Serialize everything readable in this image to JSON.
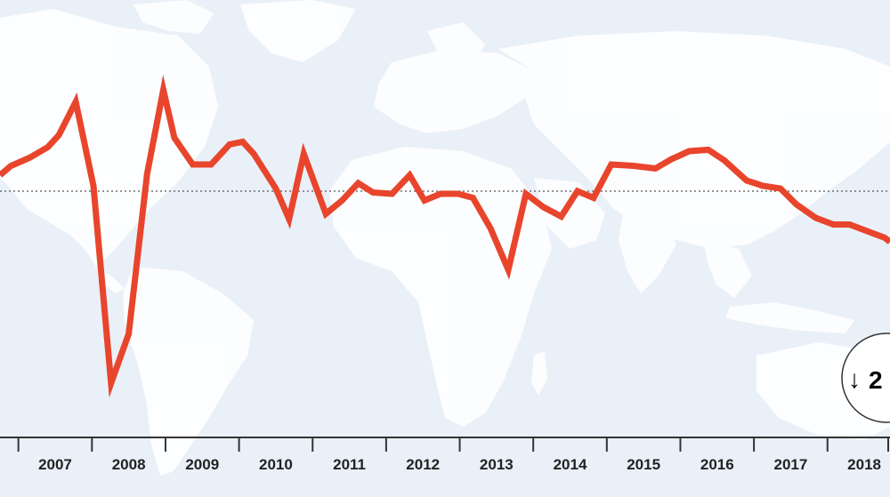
{
  "chart_data": {
    "type": "line",
    "title": "",
    "xlabel": "",
    "ylabel": "",
    "x_tick_labels": [
      "2007",
      "2008",
      "2009",
      "2010",
      "2011",
      "2012",
      "2013",
      "2014",
      "2015",
      "2016",
      "2017",
      "2018"
    ],
    "x_range": [
      2006.75,
      2018.85
    ],
    "y_range": [
      -100,
      100
    ],
    "reference_line": 0,
    "reference_line_style": "dotted",
    "grid": false,
    "legend": "none",
    "series": [
      {
        "color": "#e8452c",
        "x": [
          2006.75,
          2006.9,
          2007.15,
          2007.4,
          2007.55,
          2007.78,
          2008.02,
          2008.26,
          2008.5,
          2008.75,
          2008.97,
          2009.12,
          2009.37,
          2009.62,
          2009.87,
          2010.05,
          2010.2,
          2010.5,
          2010.68,
          2010.88,
          2011.18,
          2011.4,
          2011.62,
          2011.82,
          2012.08,
          2012.32,
          2012.52,
          2012.74,
          2012.98,
          2013.18,
          2013.42,
          2013.66,
          2013.9,
          2014.14,
          2014.38,
          2014.6,
          2014.82,
          2015.06,
          2015.36,
          2015.66,
          2015.88,
          2016.12,
          2016.38,
          2016.6,
          2016.9,
          2017.12,
          2017.36,
          2017.58,
          2017.84,
          2018.08,
          2018.3,
          2018.54,
          2018.78,
          2018.85
        ],
        "y": [
          12,
          19,
          25,
          33,
          42,
          67,
          4,
          -144,
          -107,
          13,
          76,
          40,
          20,
          20,
          35,
          37,
          28,
          2,
          -21,
          28,
          -17,
          -7,
          6,
          -1,
          -2,
          12,
          -7,
          -2,
          -2,
          -5,
          -28,
          -59,
          -2,
          -12,
          -19,
          0,
          -5,
          20,
          19,
          17,
          24,
          30,
          31,
          23,
          8,
          4,
          2,
          -10,
          -20,
          -25,
          -25,
          -30,
          -35,
          -38
        ]
      }
    ],
    "callout": {
      "arrow": "↓",
      "text": "2",
      "color": "#e8452c"
    }
  }
}
